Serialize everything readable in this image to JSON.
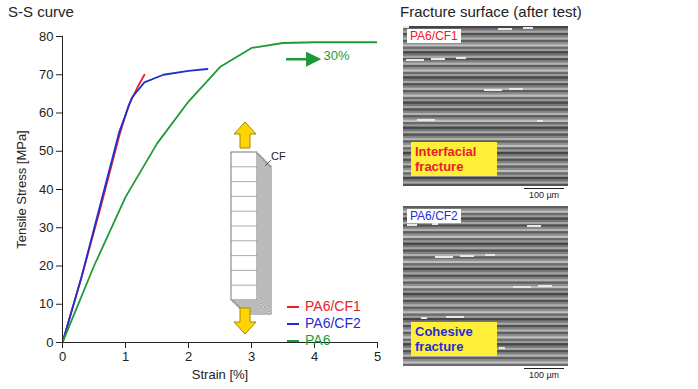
{
  "chart_data": {
    "type": "line",
    "title": "S-S curve",
    "x_label": "Strain [%]",
    "y_label": "Tensile Stress [MPa]",
    "xlim": [
      0,
      5
    ],
    "xticks": [
      0,
      1,
      2,
      3,
      4,
      5
    ],
    "ylim": [
      0,
      80
    ],
    "yticks": [
      0,
      10,
      20,
      30,
      40,
      50,
      60,
      70,
      80
    ],
    "grid": false,
    "legend": "bottom-right",
    "series": [
      {
        "name": "PA6/CF1",
        "color": "#e8202a",
        "x": [
          0,
          0.3,
          0.6,
          0.9,
          1.05,
          1.2,
          1.3
        ],
        "values": [
          0,
          17,
          35,
          54,
          62,
          67,
          70
        ]
      },
      {
        "name": "PA6/CF2",
        "color": "#1f2fd0",
        "x": [
          0,
          0.3,
          0.6,
          0.9,
          1.1,
          1.3,
          1.6,
          2.0,
          2.3
        ],
        "values": [
          0,
          17,
          36,
          55,
          64,
          68,
          70,
          71,
          71.5
        ]
      },
      {
        "name": "PA6",
        "color": "#1f9a3a",
        "x": [
          0,
          0.5,
          1.0,
          1.5,
          2.0,
          2.5,
          3.0,
          3.5,
          4.0,
          5.0
        ],
        "values": [
          0,
          20,
          38,
          52,
          63,
          72,
          77,
          78.3,
          78.5,
          78.5
        ]
      }
    ],
    "annotations": [
      {
        "text": "30%",
        "x": 4.35,
        "y": 75,
        "color": "#1f9a3a"
      },
      {
        "text": "CF",
        "color": "#222222"
      }
    ]
  },
  "fracture_surface": {
    "title": "Fracture surface (after test)",
    "images": [
      {
        "label": "PA6/CF1",
        "color": "#e8202a",
        "caption": "Interfacial fracture",
        "scale_bar": "100 µm"
      },
      {
        "label": "PA6/CF2",
        "color": "#1f2fd0",
        "caption": "Cohesive fracture",
        "scale_bar": "100 µm"
      }
    ]
  }
}
